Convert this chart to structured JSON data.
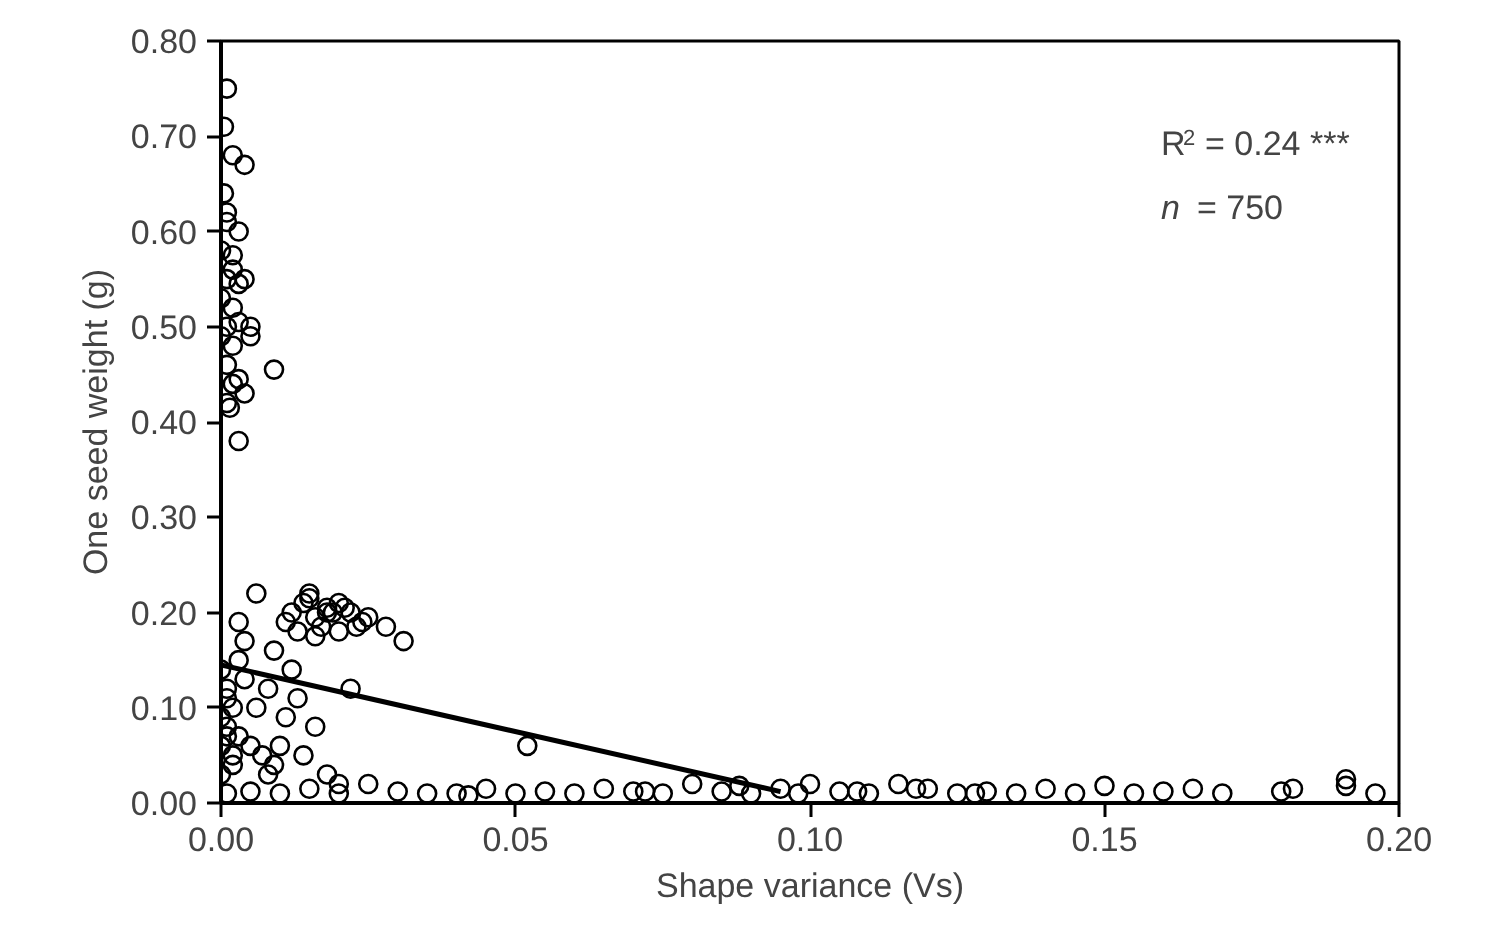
{
  "chart_data": {
    "type": "scatter",
    "xlabel": "Shape variance (Vs)",
    "ylabel": "One seed weight (g)",
    "xlim": [
      0,
      0.2
    ],
    "ylim": [
      0,
      0.8
    ],
    "xticks": [
      {
        "value": 0,
        "label": "0.00"
      },
      {
        "value": 0.05,
        "label": "0.05"
      },
      {
        "value": 0.1,
        "label": "0.10"
      },
      {
        "value": 0.15,
        "label": "0.15"
      },
      {
        "value": 0.2,
        "label": "0.20"
      }
    ],
    "yticks": [
      {
        "value": 0,
        "label": "0.00"
      },
      {
        "value": 0.1,
        "label": "0.10"
      },
      {
        "value": 0.2,
        "label": "0.20"
      },
      {
        "value": 0.3,
        "label": "0.30"
      },
      {
        "value": 0.4,
        "label": "0.40"
      },
      {
        "value": 0.5,
        "label": "0.50"
      },
      {
        "value": 0.6,
        "label": "0.60"
      },
      {
        "value": 0.7,
        "label": "0.70"
      },
      {
        "value": 0.8,
        "label": "0.80"
      }
    ],
    "grid": false,
    "annotations": [
      "R$^{2}$ = 0.24 ***",
      "n = 750"
    ],
    "series": [
      {
        "color": "#000000",
        "marker": "circle",
        "x": [
          0.001,
          0.0005,
          0.002,
          0.004,
          0.0005,
          0.001,
          0.003,
          0.0,
          0.002,
          0.001,
          0.003,
          0.0,
          0.002,
          0.004,
          0.001,
          0.003,
          0.0,
          0.002,
          0.005,
          0.001,
          0.003,
          0.002,
          0.001,
          0.004,
          0.0015,
          0.009,
          0.003,
          0.005,
          0.001,
          0.002,
          0.012,
          0.014,
          0.016,
          0.018,
          0.02,
          0.022,
          0.024,
          0.013,
          0.015,
          0.017,
          0.019,
          0.021,
          0.023,
          0.025,
          0.011,
          0.016,
          0.02,
          0.028,
          0.031,
          0.006,
          0.003,
          0.004,
          0.009,
          0.018,
          0.015,
          0.0,
          0.001,
          0.002,
          0.0,
          0.001,
          0.003,
          0.0,
          0.002,
          0.001,
          0.004,
          0.005,
          0.007,
          0.009,
          0.006,
          0.008,
          0.011,
          0.013,
          0.003,
          0.002,
          0.01,
          0.014,
          0.018,
          0.02,
          0.022,
          0.016,
          0.012,
          0.0,
          0.001,
          0.008,
          0.001,
          0.005,
          0.01,
          0.015,
          0.02,
          0.025,
          0.03,
          0.035,
          0.04,
          0.045,
          0.05,
          0.052,
          0.055,
          0.06,
          0.065,
          0.07,
          0.075,
          0.08,
          0.085,
          0.09,
          0.095,
          0.1,
          0.105,
          0.11,
          0.115,
          0.12,
          0.125,
          0.13,
          0.135,
          0.14,
          0.145,
          0.15,
          0.155,
          0.16,
          0.165,
          0.17,
          0.18,
          0.182,
          0.191,
          0.191,
          0.196,
          0.042,
          0.072,
          0.088,
          0.098,
          0.108,
          0.118,
          0.128
        ],
        "values": [
          0.75,
          0.71,
          0.68,
          0.67,
          0.64,
          0.61,
          0.6,
          0.58,
          0.56,
          0.55,
          0.545,
          0.53,
          0.52,
          0.55,
          0.5,
          0.505,
          0.49,
          0.48,
          0.49,
          0.46,
          0.445,
          0.44,
          0.42,
          0.43,
          0.415,
          0.455,
          0.38,
          0.5,
          0.62,
          0.575,
          0.2,
          0.21,
          0.195,
          0.205,
          0.21,
          0.2,
          0.19,
          0.18,
          0.215,
          0.185,
          0.2,
          0.205,
          0.185,
          0.195,
          0.19,
          0.175,
          0.18,
          0.185,
          0.17,
          0.22,
          0.19,
          0.17,
          0.16,
          0.2,
          0.22,
          0.14,
          0.12,
          0.1,
          0.09,
          0.08,
          0.07,
          0.06,
          0.05,
          0.11,
          0.13,
          0.06,
          0.05,
          0.04,
          0.1,
          0.12,
          0.09,
          0.11,
          0.15,
          0.04,
          0.06,
          0.05,
          0.03,
          0.02,
          0.12,
          0.08,
          0.14,
          0.03,
          0.07,
          0.03,
          0.01,
          0.012,
          0.01,
          0.015,
          0.01,
          0.02,
          0.012,
          0.01,
          0.01,
          0.015,
          0.01,
          0.06,
          0.012,
          0.01,
          0.015,
          0.012,
          0.01,
          0.02,
          0.012,
          0.01,
          0.015,
          0.02,
          0.012,
          0.01,
          0.02,
          0.015,
          0.01,
          0.012,
          0.01,
          0.015,
          0.01,
          0.018,
          0.01,
          0.012,
          0.015,
          0.01,
          0.012,
          0.015,
          0.025,
          0.018,
          0.01,
          0.008,
          0.012,
          0.018,
          0.01,
          0.012,
          0.015,
          0.01
        ]
      },
      {
        "color": "#000000",
        "type": "line",
        "marker": "none",
        "x": [
          0.0,
          0.095
        ],
        "values": [
          0.145,
          0.012
        ]
      }
    ]
  }
}
